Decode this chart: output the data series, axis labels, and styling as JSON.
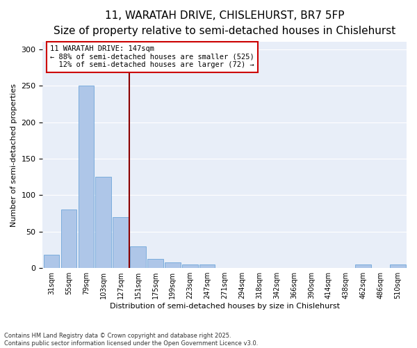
{
  "title_line1": "11, WARATAH DRIVE, CHISLEHURST, BR7 5FP",
  "title_line2": "Size of property relative to semi-detached houses in Chislehurst",
  "xlabel": "Distribution of semi-detached houses by size in Chislehurst",
  "ylabel": "Number of semi-detached properties",
  "bar_labels": [
    "31sqm",
    "55sqm",
    "79sqm",
    "103sqm",
    "127sqm",
    "151sqm",
    "175sqm",
    "199sqm",
    "223sqm",
    "247sqm",
    "271sqm",
    "294sqm",
    "318sqm",
    "342sqm",
    "366sqm",
    "390sqm",
    "414sqm",
    "438sqm",
    "462sqm",
    "486sqm",
    "510sqm"
  ],
  "values": [
    18,
    80,
    250,
    125,
    70,
    30,
    13,
    8,
    5,
    5,
    0,
    0,
    0,
    0,
    0,
    0,
    0,
    0,
    5,
    0,
    5
  ],
  "bar_color": "#aec6e8",
  "bar_edge_color": "#5b9bd5",
  "vline_color": "#8b0000",
  "annotation_text": "11 WARATAH DRIVE: 147sqm\n← 88% of semi-detached houses are smaller (525)\n  12% of semi-detached houses are larger (72) →",
  "annotation_box_color": "#ffffff",
  "annotation_box_edge": "#cc0000",
  "ylim": [
    0,
    310
  ],
  "yticks": [
    0,
    50,
    100,
    150,
    200,
    250,
    300
  ],
  "background_color": "#e8eef8",
  "footnote": "Contains HM Land Registry data © Crown copyright and database right 2025.\nContains public sector information licensed under the Open Government Licence v3.0.",
  "title_fontsize": 11,
  "subtitle_fontsize": 9,
  "tick_fontsize": 7,
  "ylabel_fontsize": 8,
  "xlabel_fontsize": 8
}
